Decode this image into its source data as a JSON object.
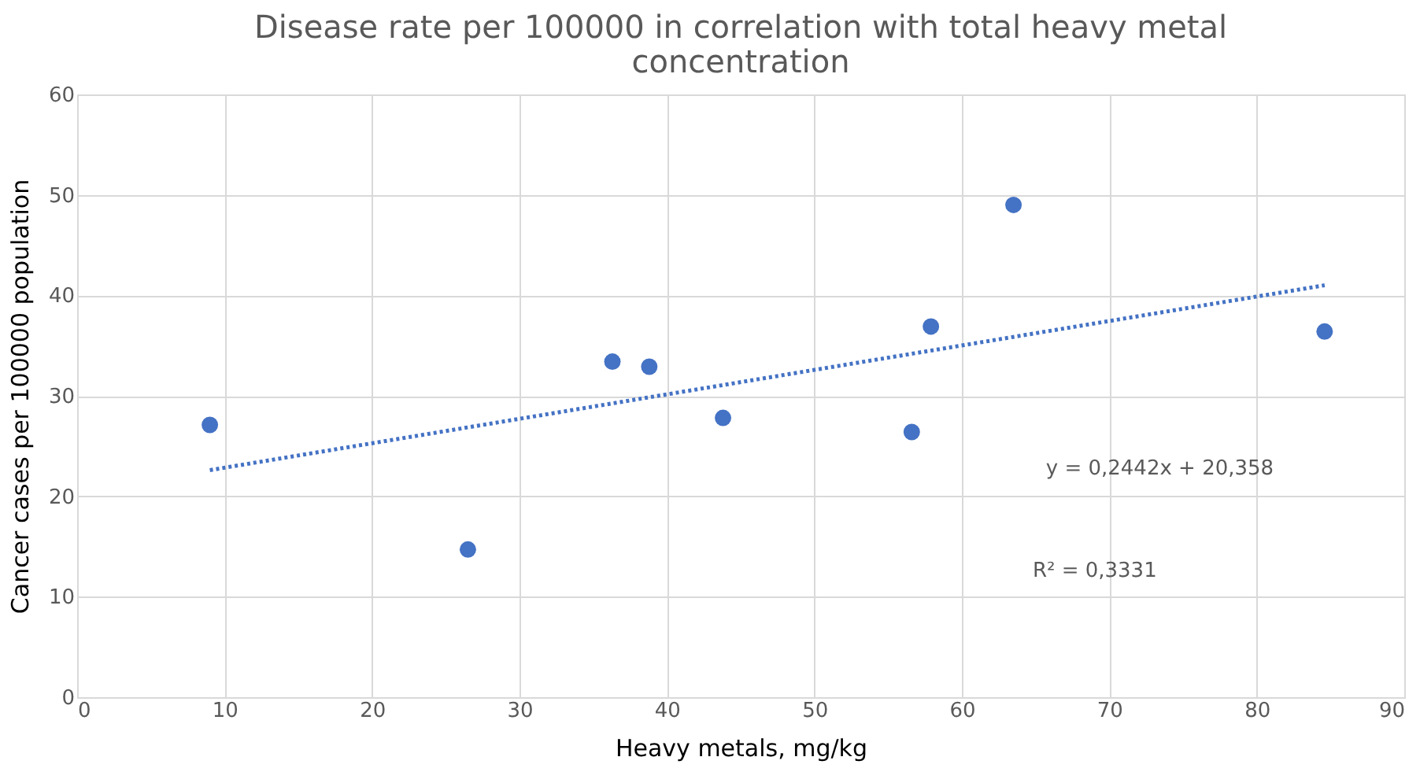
{
  "chart_data": {
    "type": "scatter",
    "title": [
      "Disease rate per 100000 in correlation with total heavy metal",
      "concentration"
    ],
    "xlabel": "Heavy metals, mg/kg",
    "ylabel": "Cancer cases per 100000 population",
    "series": [
      {
        "color": "#4472c4",
        "marker": "circle",
        "x": [
          9.0,
          26.5,
          36.3,
          38.8,
          43.8,
          56.6,
          57.9,
          63.5,
          84.6
        ],
        "values": [
          27.1,
          14.7,
          33.4,
          32.9,
          27.8,
          26.4,
          36.9,
          49.0,
          36.4
        ]
      },
      {
        "type": "line",
        "color": "#4472c4",
        "line_style": "dotted",
        "x": [
          9.0,
          84.6
        ],
        "values": [
          22.6,
          41.0
        ]
      }
    ],
    "annotations": [
      "y = 0,2442x + 20,358",
      "R² = 0,3331"
    ],
    "xlim": [
      0,
      90
    ],
    "xticks": [
      0,
      10,
      20,
      30,
      40,
      50,
      60,
      70,
      80,
      90
    ],
    "ylim": [
      0,
      60
    ],
    "yticks": [
      0,
      10,
      20,
      30,
      40,
      50,
      60
    ],
    "grid": true
  }
}
